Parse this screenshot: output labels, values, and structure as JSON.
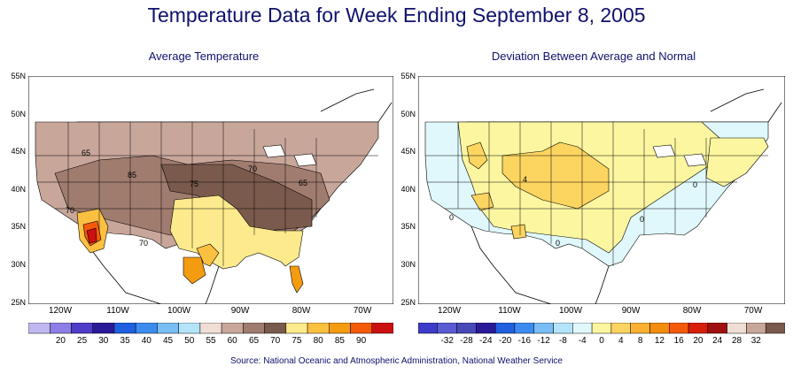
{
  "title": "Temperature Data for Week Ending September 8, 2005",
  "left_map": {
    "subtitle": "Average Temperature",
    "lat_labels": [
      "55N",
      "50N",
      "45N",
      "40N",
      "35N",
      "30N",
      "25N"
    ],
    "lon_labels": [
      "120W",
      "110W",
      "100W",
      "90W",
      "80W",
      "70W"
    ],
    "contour_labels": [
      "65",
      "85",
      "70",
      "75",
      "70",
      "70",
      "65"
    ],
    "colorbar_values": [
      "20",
      "25",
      "30",
      "35",
      "40",
      "45",
      "50",
      "55",
      "60",
      "65",
      "70",
      "75",
      "80",
      "85",
      "90"
    ],
    "colorbar_colors": [
      "#c0b8f0",
      "#8c7ee6",
      "#4f3cc8",
      "#2a1a9a",
      "#1f5fe0",
      "#3c8cf0",
      "#78bdf5",
      "#b4e4fa",
      "#f0ddd6",
      "#c8a69a",
      "#a07c6e",
      "#7a5a4c",
      "#fcea8c",
      "#fcc040",
      "#f49c10",
      "#f45a0a",
      "#cc1010"
    ]
  },
  "right_map": {
    "subtitle": "Deviation Between Average and Normal",
    "lat_labels": [
      "55N",
      "50N",
      "45N",
      "40N",
      "35N",
      "30N",
      "25N"
    ],
    "lon_labels": [
      "120W",
      "110W",
      "100W",
      "90W",
      "80W",
      "70W"
    ],
    "contour_labels": [
      "0",
      "0",
      "4",
      "0",
      "0"
    ],
    "colorbar_values": [
      "-32",
      "-28",
      "-24",
      "-20",
      "-16",
      "-12",
      "-8",
      "-4",
      "0",
      "4",
      "8",
      "12",
      "16",
      "20",
      "24",
      "28",
      "32"
    ],
    "colorbar_colors": [
      "#3c3cc8",
      "#5a5ad2",
      "#4848b8",
      "#2a1a9a",
      "#1f5fe0",
      "#3c8cf0",
      "#78bdf5",
      "#b4e4fa",
      "#e0f8fc",
      "#fcf6a0",
      "#fcd460",
      "#fcb030",
      "#f48c10",
      "#f45a0a",
      "#d81e0a",
      "#a01010",
      "#f0ddd6",
      "#c8a69a",
      "#7a5a4c"
    ]
  },
  "source": "Source:  National Oceanic and Atmospheric Administration, National Weather Service"
}
